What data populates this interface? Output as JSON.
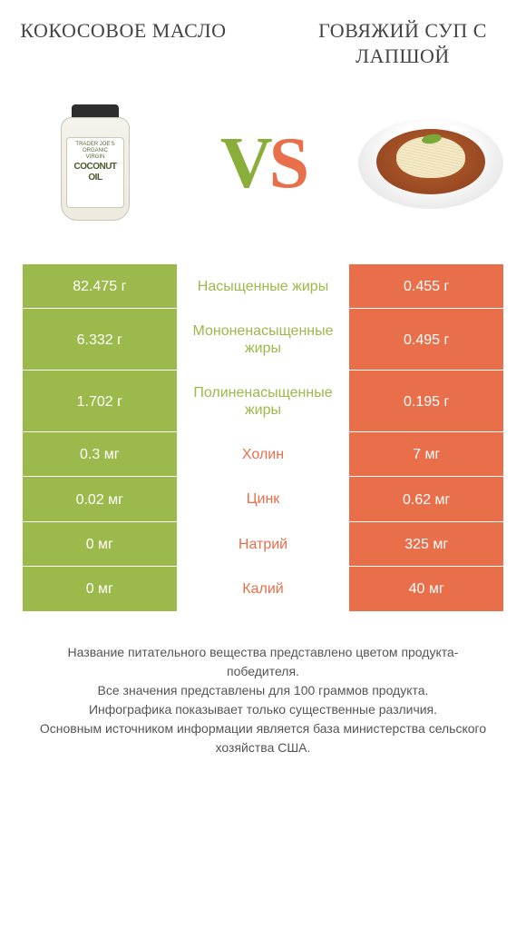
{
  "products": {
    "left": {
      "title": "КОКОСОВОЕ МАСЛО",
      "color": "#9cb94b"
    },
    "right": {
      "title": "ГОВЯЖИЙ СУП С ЛАПШОЙ",
      "color": "#e86f4a"
    }
  },
  "vs": {
    "v": "V",
    "s": "S",
    "v_color": "#8aae3a",
    "s_color": "#e86f4a"
  },
  "label_colors": {
    "left_win": "#9cb94b",
    "right_win": "#e86f4a"
  },
  "rows": [
    {
      "label": "Насыщенные жиры",
      "left": "82.475 г",
      "right": "0.455 г",
      "winner": "left"
    },
    {
      "label": "Мононенасыщенные жиры",
      "left": "6.332 г",
      "right": "0.495 г",
      "winner": "left"
    },
    {
      "label": "Полиненасыщенные жиры",
      "left": "1.702 г",
      "right": "0.195 г",
      "winner": "left"
    },
    {
      "label": "Холин",
      "left": "0.3 мг",
      "right": "7 мг",
      "winner": "right"
    },
    {
      "label": "Цинк",
      "left": "0.02 мг",
      "right": "0.62 мг",
      "winner": "right"
    },
    {
      "label": "Натрий",
      "left": "0 мг",
      "right": "325 мг",
      "winner": "right"
    },
    {
      "label": "Калий",
      "left": "0 мг",
      "right": "40 мг",
      "winner": "right"
    }
  ],
  "jar_label": {
    "line1": "TRADER JOE'S",
    "line2": "ORGANIC",
    "line3": "VIRGIN",
    "big1": "COCONUT",
    "big2": "OIL"
  },
  "footer": "Название питательного вещества представлено цветом продукта-победителя.\nВсе значения представлены для 100 граммов продукта.\nИнфографика показывает только существенные различия.\nОсновным источником информации является база министерства сельского хозяйства США."
}
